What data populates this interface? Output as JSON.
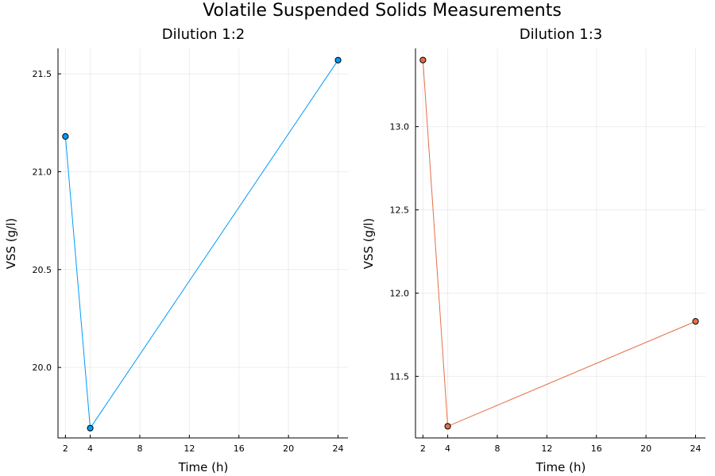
{
  "figure": {
    "title": "Volatile Suspended Solids Measurements"
  },
  "chart_data": [
    {
      "type": "line",
      "title": "Dilution 1:2",
      "xlabel": "Time (h)",
      "ylabel": "VSS (g/l)",
      "x": [
        2,
        4,
        24
      ],
      "series": [
        {
          "values": [
            21.18,
            19.69,
            21.57
          ],
          "color": "#009AFA"
        }
      ],
      "xlim": [
        1.4,
        24.8
      ],
      "ylim": [
        19.64,
        21.63
      ],
      "xticks": [
        2,
        4,
        8,
        12,
        16,
        20,
        24
      ],
      "yticks": [
        20.0,
        20.5,
        21.0,
        21.5
      ],
      "ytick_labels": [
        "20.0",
        "20.5",
        "21.0",
        "21.5"
      ],
      "grid": true,
      "legend": "none"
    },
    {
      "type": "line",
      "title": "Dilution 1:3",
      "xlabel": "Time (h)",
      "ylabel": "VSS (g/l)",
      "x": [
        2,
        4,
        24
      ],
      "series": [
        {
          "values": [
            13.4,
            11.2,
            11.83
          ],
          "color": "#E36F47"
        }
      ],
      "xlim": [
        1.4,
        24.8
      ],
      "ylim": [
        11.13,
        13.47
      ],
      "xticks": [
        2,
        4,
        8,
        12,
        16,
        20,
        24
      ],
      "yticks": [
        11.5,
        12.0,
        12.5,
        13.0
      ],
      "ytick_labels": [
        "11.5",
        "12.0",
        "12.5",
        "13.0"
      ],
      "grid": true,
      "legend": "none"
    }
  ]
}
